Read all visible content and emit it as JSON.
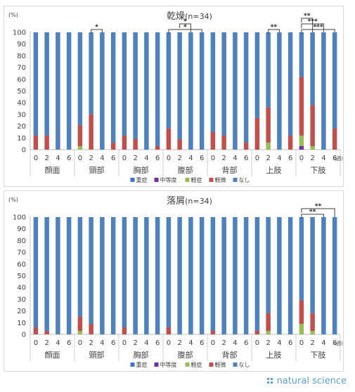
{
  "colors": {
    "severe": "#4472c4",
    "moderate": "#7030a0",
    "mild": "#9bbb59",
    "slight": "#c0504d",
    "none": "#4f81bd"
  },
  "legend": [
    {
      "key": "severe",
      "label": "重症"
    },
    {
      "key": "moderate",
      "label": "中等度"
    },
    {
      "key": "mild",
      "label": "軽症"
    },
    {
      "key": "slight",
      "label": "軽微"
    },
    {
      "key": "none",
      "label": "なし"
    }
  ],
  "brand_text": "natural science",
  "chart_data": [
    {
      "type": "bar",
      "stacked": true,
      "title": "乾燥（n=34）",
      "title_main": "乾燥",
      "title_n": "(n=34)",
      "y_unit": "(%)",
      "x_unit": "(週)",
      "ylim": [
        0,
        100
      ],
      "yticks": [
        "0",
        "10",
        "20",
        "30",
        "40",
        "50",
        "60",
        "70",
        "80",
        "90",
        "100"
      ],
      "groups": [
        "顔面",
        "頸部",
        "胸部",
        "腹部",
        "背部",
        "上肢",
        "下肢"
      ],
      "weeks": [
        "0",
        "2",
        "4",
        "6"
      ],
      "series_keys": [
        "severe",
        "moderate",
        "mild",
        "slight",
        "none"
      ],
      "values": [
        [
          [
            0,
            0,
            0,
            12,
            88
          ],
          [
            0,
            0,
            0,
            12,
            88
          ],
          [
            0,
            0,
            0,
            0,
            100
          ],
          [
            0,
            0,
            0,
            0,
            100
          ]
        ],
        [
          [
            0,
            0,
            3,
            18,
            79
          ],
          [
            0,
            0,
            0,
            30,
            70
          ],
          [
            0,
            0,
            0,
            0,
            100
          ],
          [
            0,
            0,
            0,
            6,
            94
          ]
        ],
        [
          [
            0,
            0,
            0,
            12,
            88
          ],
          [
            0,
            0,
            0,
            9,
            91
          ],
          [
            0,
            0,
            0,
            0,
            100
          ],
          [
            0,
            0,
            0,
            3,
            97
          ]
        ],
        [
          [
            0,
            0,
            0,
            18,
            82
          ],
          [
            0,
            0,
            0,
            9,
            91
          ],
          [
            0,
            0,
            0,
            0,
            100
          ],
          [
            0,
            0,
            0,
            0,
            100
          ]
        ],
        [
          [
            0,
            0,
            0,
            15,
            85
          ],
          [
            0,
            0,
            0,
            12,
            88
          ],
          [
            0,
            0,
            0,
            0,
            100
          ],
          [
            0,
            0,
            0,
            6,
            94
          ]
        ],
        [
          [
            0,
            0,
            0,
            27,
            73
          ],
          [
            0,
            0,
            6,
            30,
            64
          ],
          [
            0,
            0,
            0,
            0,
            100
          ],
          [
            0,
            0,
            0,
            12,
            88
          ]
        ],
        [
          [
            0,
            3,
            9,
            50,
            38
          ],
          [
            0,
            0,
            3,
            35,
            62
          ],
          [
            0,
            0,
            0,
            0,
            100
          ],
          [
            0,
            0,
            0,
            18,
            82
          ]
        ]
      ],
      "significance": [
        {
          "group": 1,
          "from": 1,
          "to": 2,
          "level": 0,
          "label": "*"
        },
        {
          "group": 3,
          "from": 0,
          "to": 3,
          "level": 0,
          "label": "*"
        },
        {
          "group": 3,
          "from": 1,
          "to": 2,
          "level": 1,
          "label": "*"
        },
        {
          "group": 5,
          "from": 1,
          "to": 2,
          "level": 0,
          "label": "**"
        },
        {
          "group": 6,
          "from": 0,
          "to": 1,
          "level": 2,
          "label": "**"
        },
        {
          "group": 6,
          "from": 0,
          "to": 2,
          "level": 1,
          "label": "***"
        },
        {
          "group": 6,
          "from": 0,
          "to": 3,
          "level": 0,
          "label": "***"
        }
      ]
    },
    {
      "type": "bar",
      "stacked": true,
      "title": "落屑（n=34）",
      "title_main": "落屑",
      "title_n": "(n=34)",
      "y_unit": "(%)",
      "x_unit": "(週)",
      "ylim": [
        0,
        100
      ],
      "yticks": [
        "0",
        "10",
        "20",
        "30",
        "40",
        "50",
        "60",
        "70",
        "80",
        "90",
        "100"
      ],
      "groups": [
        "顔面",
        "頸部",
        "胸部",
        "腹部",
        "背部",
        "上肢",
        "下肢"
      ],
      "weeks": [
        "0",
        "2",
        "4",
        "6"
      ],
      "series_keys": [
        "severe",
        "moderate",
        "mild",
        "slight",
        "none"
      ],
      "values": [
        [
          [
            0,
            0,
            0,
            6,
            94
          ],
          [
            0,
            0,
            0,
            3,
            97
          ],
          [
            0,
            0,
            0,
            0,
            100
          ],
          [
            0,
            0,
            0,
            0,
            100
          ]
        ],
        [
          [
            0,
            0,
            3,
            12,
            85
          ],
          [
            0,
            0,
            0,
            9,
            91
          ],
          [
            0,
            0,
            0,
            0,
            100
          ],
          [
            0,
            0,
            0,
            0,
            100
          ]
        ],
        [
          [
            0,
            0,
            0,
            6,
            94
          ],
          [
            0,
            0,
            0,
            0,
            100
          ],
          [
            0,
            0,
            0,
            0,
            100
          ],
          [
            0,
            0,
            0,
            0,
            100
          ]
        ],
        [
          [
            0,
            0,
            0,
            6,
            94
          ],
          [
            0,
            0,
            0,
            0,
            100
          ],
          [
            0,
            0,
            0,
            0,
            100
          ],
          [
            0,
            0,
            0,
            0,
            100
          ]
        ],
        [
          [
            0,
            0,
            0,
            3,
            97
          ],
          [
            0,
            0,
            0,
            0,
            100
          ],
          [
            0,
            0,
            0,
            0,
            100
          ],
          [
            0,
            0,
            0,
            0,
            100
          ]
        ],
        [
          [
            0,
            0,
            0,
            3,
            97
          ],
          [
            0,
            0,
            3,
            15,
            82
          ],
          [
            0,
            0,
            0,
            0,
            100
          ],
          [
            0,
            0,
            0,
            0,
            100
          ]
        ],
        [
          [
            0,
            0,
            9,
            20,
            71
          ],
          [
            0,
            0,
            3,
            15,
            82
          ],
          [
            0,
            0,
            0,
            0,
            100
          ],
          [
            0,
            0,
            0,
            0,
            100
          ]
        ]
      ],
      "significance": [
        {
          "group": 6,
          "from": 0,
          "to": 2,
          "level": 0,
          "label": "**"
        },
        {
          "group": 6,
          "from": 0,
          "to": 3,
          "level": 1,
          "label": "**"
        }
      ]
    }
  ]
}
